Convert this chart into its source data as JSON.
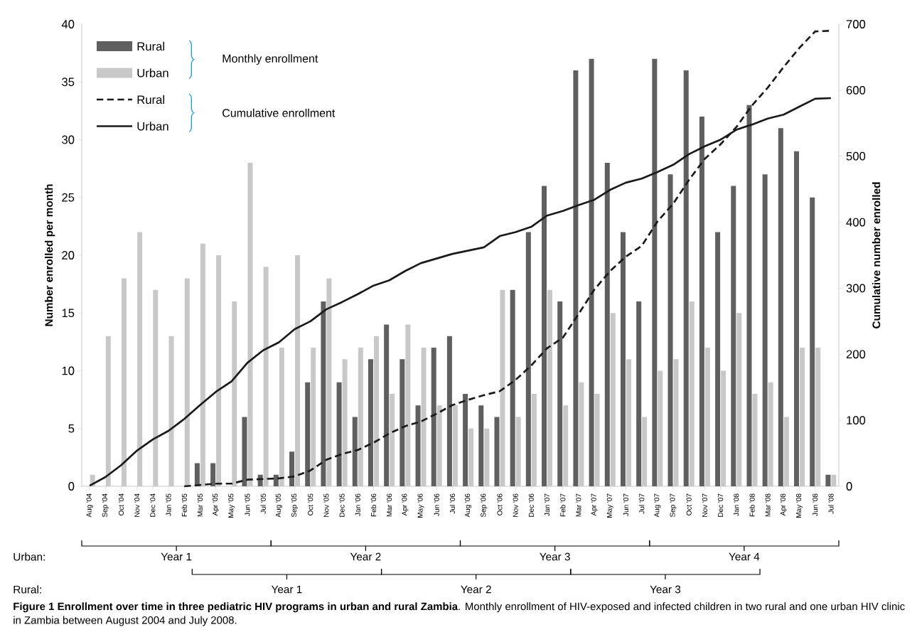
{
  "chart_data": {
    "type": "bar",
    "ylabel": "Number enrolled per month",
    "y2label": "Cumulative number enrolled",
    "categories": [
      "Aug '04",
      "Sep '04",
      "Oct '04",
      "Nov '04",
      "Dec '04",
      "Jan '05",
      "Feb '05",
      "Mar '05",
      "Apr '05",
      "May '05",
      "Jun '05",
      "Jul '05",
      "Aug '05",
      "Sep '05",
      "Oct '05",
      "Nov '05",
      "Dec '05",
      "Jan '06",
      "Feb '06",
      "Mar '06",
      "Apr '06",
      "May '06",
      "Jun '06",
      "Jul '06",
      "Aug '06",
      "Sep '06",
      "Oct '06",
      "Nov '06",
      "Dec '06",
      "Jan '07",
      "Feb '07",
      "Mar '07",
      "Apr '07",
      "May '07",
      "Jun '07",
      "Jul '07",
      "Aug '07",
      "Sep '07",
      "Oct '07",
      "Nov '07",
      "Dec '07",
      "Jan '08",
      "Feb '08",
      "Mar '08",
      "Apr '08",
      "May '08",
      "Jun '08",
      "Jul '08"
    ],
    "series": [
      {
        "name": "Rural",
        "color": "#5f5f5f",
        "values": [
          null,
          null,
          null,
          null,
          null,
          null,
          0,
          2,
          2,
          0,
          6,
          1,
          1,
          3,
          9,
          16,
          9,
          6,
          11,
          14,
          11,
          7,
          12,
          13,
          8,
          7,
          6,
          17,
          22,
          26,
          16,
          36,
          37,
          28,
          22,
          16,
          37,
          27,
          36,
          32,
          22,
          26,
          33,
          27,
          31,
          29,
          25,
          1
        ]
      },
      {
        "name": "Urban",
        "color": "#c8c8c8",
        "values": [
          1,
          13,
          18,
          22,
          17,
          13,
          18,
          21,
          20,
          16,
          28,
          19,
          12,
          20,
          12,
          18,
          11,
          12,
          13,
          8,
          14,
          12,
          7,
          7,
          5,
          5,
          17,
          6,
          8,
          17,
          7,
          9,
          8,
          15,
          11,
          6,
          10,
          11,
          16,
          12,
          10,
          15,
          8,
          9,
          6,
          12,
          12,
          1
        ]
      },
      {
        "name": "Rural",
        "type": "line",
        "axis": "y2",
        "line_style": "dashed",
        "color": "#1a1a1a",
        "values": [
          null,
          null,
          null,
          null,
          null,
          null,
          0,
          2,
          4,
          4,
          10,
          11,
          12,
          15,
          24,
          40,
          49,
          55,
          66,
          80,
          91,
          98,
          110,
          123,
          131,
          138,
          144,
          161,
          183,
          209,
          225,
          261,
          298,
          326,
          348,
          364,
          401,
          428,
          464,
          496,
          518,
          544,
          577,
          604,
          635,
          664,
          689,
          690
        ]
      },
      {
        "name": "Urban",
        "type": "line",
        "axis": "y2",
        "line_style": "solid",
        "color": "#1a1a1a",
        "values": [
          1,
          14,
          32,
          54,
          71,
          84,
          102,
          123,
          143,
          159,
          187,
          206,
          218,
          238,
          250,
          268,
          279,
          291,
          304,
          312,
          326,
          338,
          345,
          352,
          357,
          362,
          379,
          385,
          393,
          410,
          417,
          426,
          434,
          449,
          460,
          466,
          476,
          487,
          503,
          515,
          525,
          540,
          548,
          557,
          563,
          575,
          587,
          588
        ]
      }
    ],
    "ylim": [
      0,
      40
    ],
    "yticks": [
      0,
      5,
      10,
      15,
      20,
      25,
      30,
      35,
      40
    ],
    "y2lim": [
      0,
      700
    ],
    "y2ticks": [
      0,
      100,
      200,
      300,
      400,
      500,
      600,
      700
    ],
    "legend": "top left",
    "marker": "none",
    "annotations": [
      "Monthly enrollment",
      "Cumulative  enrollment",
      "Urban:",
      "Rural:",
      "Year 1",
      "Year 2",
      "Year 3",
      "Year 4",
      "Year 1",
      "Year 2",
      "Year 3",
      "**Figure 1 Enrollment over time in three pediatric HIV programs in urban and rural Zambia**. Monthly enrollment of HIV-exposed and infected children in two rural and one urban HIV clinic in Zambia between August 2004 and July 2008."
    ]
  }
}
